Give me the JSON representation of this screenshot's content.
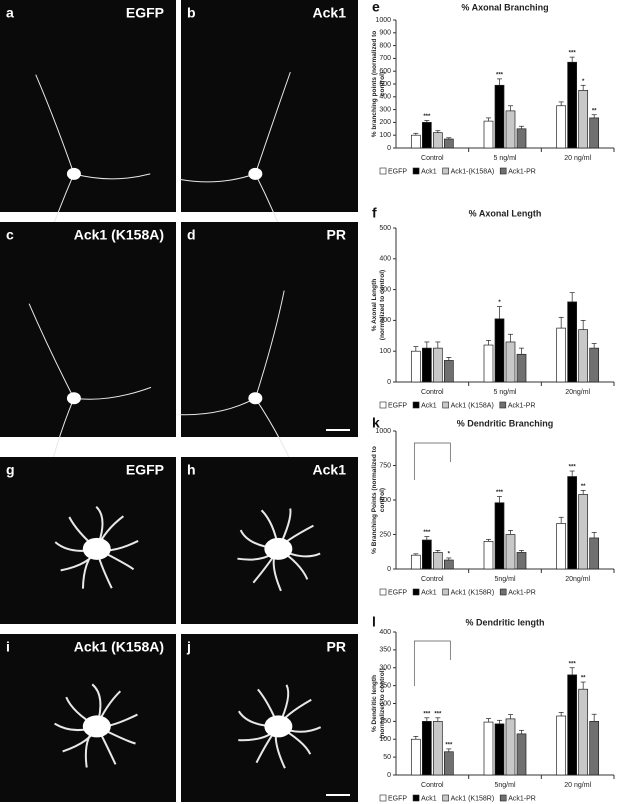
{
  "panels": [
    {
      "letter": "a",
      "label": "EGFP"
    },
    {
      "letter": "b",
      "label": "Ack1"
    },
    {
      "letter": "c",
      "label": "Ack1 (K158A)"
    },
    {
      "letter": "d",
      "label": "PR"
    },
    {
      "letter": "g",
      "label": "EGFP"
    },
    {
      "letter": "h",
      "label": "Ack1"
    },
    {
      "letter": "i",
      "label": "Ack1 (K158A)"
    },
    {
      "letter": "j",
      "label": "PR"
    }
  ],
  "chart_data": [
    {
      "type": "bar",
      "panel": "e",
      "title": "% Axonal Branching",
      "ylabel": [
        "% branching points (normalized to",
        "control)"
      ],
      "categories": [
        "Control",
        "5 ng/ml",
        "20 ng/ml"
      ],
      "ylim": [
        0,
        1000
      ],
      "yticks": [
        0,
        100,
        200,
        300,
        400,
        500,
        600,
        700,
        800,
        900,
        1000
      ],
      "series": [
        {
          "name": "EGFP",
          "color": "#ffffff",
          "values": [
            100,
            210,
            330
          ],
          "errors": [
            15,
            25,
            30
          ],
          "annotations": [
            null,
            null,
            null
          ]
        },
        {
          "name": "Ack1",
          "color": "#000000",
          "values": [
            200,
            490,
            670
          ],
          "errors": [
            15,
            50,
            40
          ],
          "annotations": [
            "***",
            "***",
            "***"
          ]
        },
        {
          "name": "Ack1-(K158A)",
          "color": "#c8c8c8",
          "values": [
            120,
            290,
            450
          ],
          "errors": [
            15,
            40,
            40
          ],
          "annotations": [
            null,
            null,
            "*"
          ]
        },
        {
          "name": "Ack1-PR",
          "color": "#707070",
          "values": [
            70,
            150,
            235
          ],
          "errors": [
            10,
            20,
            25
          ],
          "annotations": [
            null,
            null,
            "**"
          ]
        }
      ]
    },
    {
      "type": "bar",
      "panel": "f",
      "title": "% Axonal Length",
      "ylabel": [
        "% Axonal Length",
        "(normalized to control)"
      ],
      "categories": [
        "Control",
        "5 ng/ml",
        "20ng/ml"
      ],
      "ylim": [
        0,
        500
      ],
      "yticks": [
        0,
        100,
        200,
        300,
        400,
        500
      ],
      "series": [
        {
          "name": "EGFP",
          "color": "#ffffff",
          "values": [
            100,
            120,
            175
          ],
          "errors": [
            15,
            15,
            35
          ],
          "annotations": [
            null,
            null,
            null
          ]
        },
        {
          "name": "Ack1",
          "color": "#000000",
          "values": [
            110,
            205,
            260
          ],
          "errors": [
            20,
            40,
            30
          ],
          "annotations": [
            null,
            "*",
            null
          ]
        },
        {
          "name": "Ack1 (K158A)",
          "color": "#c8c8c8",
          "values": [
            110,
            130,
            170
          ],
          "errors": [
            20,
            25,
            30
          ],
          "annotations": [
            null,
            null,
            null
          ]
        },
        {
          "name": "Ack1-PR",
          "color": "#707070",
          "values": [
            70,
            90,
            110
          ],
          "errors": [
            10,
            20,
            15
          ],
          "annotations": [
            null,
            null,
            null
          ]
        }
      ]
    },
    {
      "type": "bar",
      "panel": "k",
      "title": "% Dendritic Branching",
      "ylabel": [
        "% Branching Points (normalized to",
        "control)"
      ],
      "categories": [
        "Control",
        "5ng/ml",
        "20ng/ml"
      ],
      "ylim": [
        0,
        1000
      ],
      "yticks": [
        0,
        250,
        500,
        750,
        1000
      ],
      "series": [
        {
          "name": "EGFP",
          "color": "#ffffff",
          "values": [
            100,
            200,
            330
          ],
          "errors": [
            10,
            15,
            45
          ],
          "annotations": [
            null,
            null,
            null
          ]
        },
        {
          "name": "Ack1",
          "color": "#000000",
          "values": [
            210,
            480,
            670
          ],
          "errors": [
            25,
            45,
            40
          ],
          "annotations": [
            "***",
            "***",
            "***"
          ]
        },
        {
          "name": "Ack1 (K158R)",
          "color": "#c8c8c8",
          "values": [
            120,
            250,
            540
          ],
          "errors": [
            15,
            30,
            30
          ],
          "annotations": [
            null,
            null,
            "**"
          ]
        },
        {
          "name": "Ack1-PR",
          "color": "#707070",
          "values": [
            65,
            120,
            225
          ],
          "errors": [
            15,
            15,
            40
          ],
          "annotations": [
            "*",
            null,
            null
          ]
        }
      ]
    },
    {
      "type": "bar",
      "panel": "l",
      "title": "% Dendritic length",
      "ylabel": [
        "% Dendritic length",
        "(normalized to control)"
      ],
      "categories": [
        "Control",
        "5ng/ml",
        "20 ng/ml"
      ],
      "ylim": [
        0,
        400
      ],
      "yticks": [
        0,
        50,
        100,
        150,
        200,
        250,
        300,
        350,
        400
      ],
      "series": [
        {
          "name": "EGFP",
          "color": "#ffffff",
          "values": [
            100,
            148,
            165
          ],
          "errors": [
            8,
            10,
            10
          ],
          "annotations": [
            null,
            null,
            null
          ]
        },
        {
          "name": "Ack1",
          "color": "#000000",
          "values": [
            150,
            143,
            280
          ],
          "errors": [
            10,
            10,
            20
          ],
          "annotations": [
            "***",
            null,
            "***"
          ]
        },
        {
          "name": "Ack1 (K158R)",
          "color": "#c8c8c8",
          "values": [
            150,
            157,
            240
          ],
          "errors": [
            10,
            12,
            20
          ],
          "annotations": [
            "***",
            null,
            "**"
          ]
        },
        {
          "name": "Ack1-PR",
          "color": "#707070",
          "values": [
            65,
            115,
            150
          ],
          "errors": [
            8,
            10,
            20
          ],
          "annotations": [
            "***",
            null,
            null
          ]
        }
      ]
    }
  ]
}
